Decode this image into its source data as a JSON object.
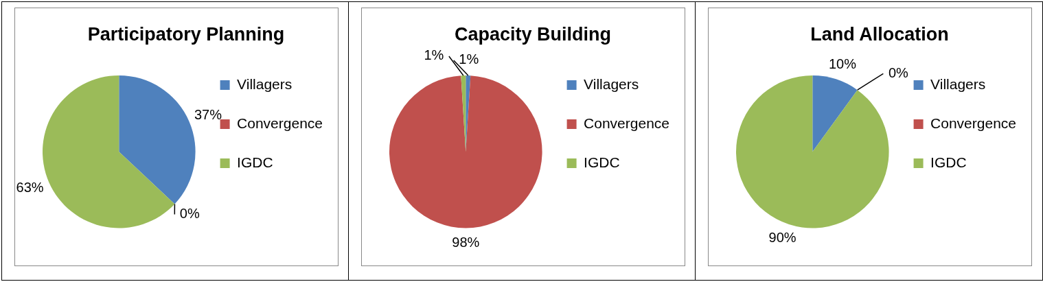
{
  "chart_data": [
    {
      "type": "pie",
      "title": "Participatory Planning",
      "categories": [
        "Villagers",
        "Convergence",
        "IGDC"
      ],
      "values": [
        37,
        0,
        63
      ],
      "colors": [
        "#4f81bd",
        "#c0504d",
        "#9bbb59"
      ],
      "value_labels": [
        "37%",
        "0%",
        "63%"
      ],
      "legend": "right"
    },
    {
      "type": "pie",
      "title": "Capacity Building",
      "categories": [
        "Villagers",
        "Convergence",
        "IGDC"
      ],
      "values": [
        1,
        98,
        1
      ],
      "colors": [
        "#4f81bd",
        "#c0504d",
        "#9bbb59"
      ],
      "value_labels": [
        "1%",
        "98%",
        "1%"
      ],
      "legend": "right"
    },
    {
      "type": "pie",
      "title": "Land Allocation",
      "categories": [
        "Villagers",
        "Convergence",
        "IGDC"
      ],
      "values": [
        10,
        0,
        90
      ],
      "colors": [
        "#4f81bd",
        "#c0504d",
        "#9bbb59"
      ],
      "value_labels": [
        "10%",
        "0%",
        "90%"
      ],
      "legend": "right"
    }
  ]
}
